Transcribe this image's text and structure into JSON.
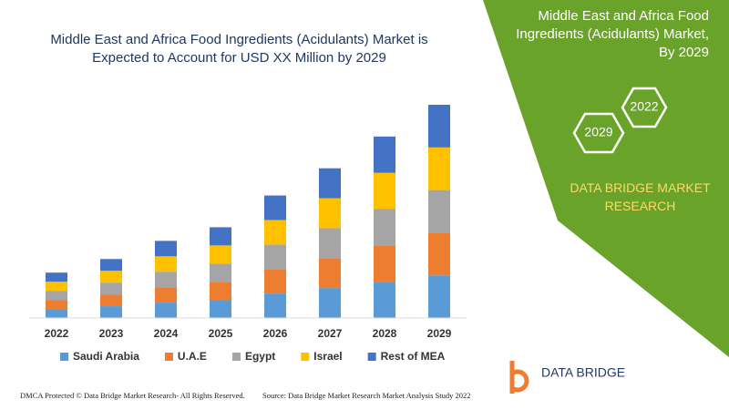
{
  "chart_data": {
    "type": "stacked_bar",
    "title": "Middle East and Africa Food Ingredients (Acidulants) Market is Expected to Account for USD XX Million by 2029",
    "categories": [
      "2022",
      "2023",
      "2024",
      "2025",
      "2026",
      "2027",
      "2028",
      "2029"
    ],
    "series": [
      {
        "name": "Saudi Arabia",
        "color": "#5b9bd5",
        "values": [
          10,
          13,
          17,
          20,
          27,
          33,
          40,
          47
        ]
      },
      {
        "name": "U.A.E",
        "color": "#ed7d31",
        "values": [
          10,
          13,
          17,
          20,
          27,
          33,
          40,
          47
        ]
      },
      {
        "name": "Egypt",
        "color": "#a5a5a5",
        "values": [
          10,
          13,
          17,
          20,
          27,
          33,
          40,
          47
        ]
      },
      {
        "name": "Israel",
        "color": "#ffc000",
        "values": [
          10,
          13,
          17,
          20,
          27,
          33,
          40,
          47
        ]
      },
      {
        "name": "Rest of MEA",
        "color": "#4472c4",
        "values": [
          10,
          13,
          17,
          20,
          27,
          33,
          40,
          47
        ]
      }
    ],
    "legend": "bottom",
    "grid": false
  },
  "panel": {
    "title": "Middle East and Africa Food Ingredients (Acidulants) Market, By 2029",
    "hex_labels": [
      "2022",
      "2029"
    ],
    "brand": "DATA BRIDGE MARKET RESEARCH"
  },
  "logo": {
    "name": "DATA BRIDGE"
  },
  "footer": {
    "left": "DMCA Protected © Data Bridge Market Research- All Rights Reserved.",
    "right": "Source: Data Bridge Market Research Market Analysis Study 2022"
  }
}
